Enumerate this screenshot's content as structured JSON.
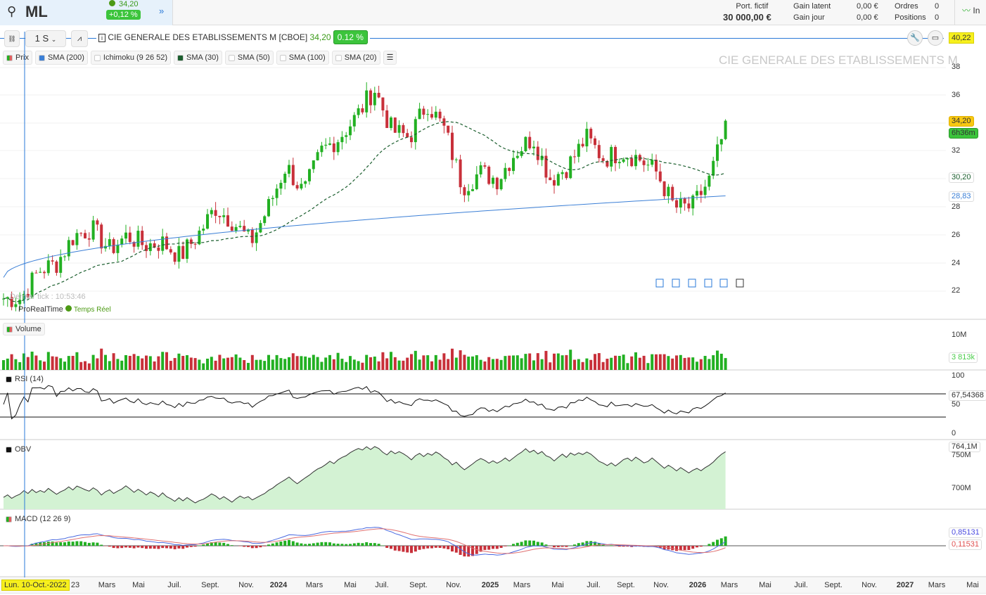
{
  "header": {
    "search_icon": "search-icon",
    "ticker": "ML",
    "price": "34,20",
    "change": "+0,12 %",
    "more_icon": "double-chevron-right-icon",
    "portfolio_label": "Port. fictif",
    "portfolio_value": "30 000,00 €",
    "gain_latent_label": "Gain latent",
    "gain_latent": "0,00 €",
    "gain_jour_label": "Gain jour",
    "gain_jour": "0,00 €",
    "ordres_label": "Ordres",
    "ordres": "0",
    "positions_label": "Positions",
    "positions": "0",
    "side_label": "In"
  },
  "toolbar": {
    "period": "1 S",
    "instrument": "CIE GENERALE DES ETABLISSEMENTS M [CBOE]",
    "price": "34,20",
    "change": "0.12 %",
    "crosshair_price": "40,22"
  },
  "legend": [
    {
      "label": "Prix",
      "color": "#d04040"
    },
    {
      "label": "SMA (200)",
      "color": "#3b7fd6"
    },
    {
      "label": "Ichimoku (9 26 52)",
      "color": ""
    },
    {
      "label": "SMA (30)",
      "color": "#1b5e2e"
    },
    {
      "label": "SMA (50)",
      "color": ""
    },
    {
      "label": "SMA (100)",
      "color": ""
    },
    {
      "label": "SMA (20)",
      "color": ""
    }
  ],
  "watermark": "CIE GENERALE DES ETABLISSEMENTS M",
  "status": {
    "last_tick": "Dernier tick : 10:53:46",
    "provider": "ProRealTime",
    "realtime": "Temps Réel"
  },
  "price_axis": [
    "38",
    "36",
    "32",
    "28",
    "26",
    "24",
    "22"
  ],
  "tags": {
    "last": "34,20",
    "timer": "6h36m",
    "sma30": "30,20",
    "sma200": "28,83",
    "volume": "3 813k",
    "rsi": "67,54368",
    "obv": "764,1M",
    "macd": "0,85131",
    "signal": "0,11531"
  },
  "panels": {
    "volume": "Volume",
    "rsi": "RSI (14)",
    "obv": "OBV",
    "macd": "MACD (12 26 9)"
  },
  "volume_axis": [
    "10M"
  ],
  "rsi_axis": [
    "100",
    "50",
    "0"
  ],
  "obv_axis": [
    "750M",
    "700M"
  ],
  "colors": {
    "up": "#22b022",
    "down": "#c8303a",
    "sma200": "#3b7fd6",
    "sma30": "#1b5e2e",
    "obv_fill": "#d3f2d3"
  },
  "x_axis": {
    "cursor_label": "Lun. 10-Oct.-2022",
    "labels": [
      {
        "t": "23",
        "x": 107,
        "b": false
      },
      {
        "t": "Mars",
        "x": 152,
        "b": false
      },
      {
        "t": "Mai",
        "x": 197,
        "b": false
      },
      {
        "t": "Juil.",
        "x": 248,
        "b": false
      },
      {
        "t": "Sept.",
        "x": 299,
        "b": false
      },
      {
        "t": "Nov.",
        "x": 350,
        "b": false
      },
      {
        "t": "2024",
        "x": 396,
        "b": true
      },
      {
        "t": "Mars",
        "x": 447,
        "b": false
      },
      {
        "t": "Mai",
        "x": 498,
        "b": false
      },
      {
        "t": "Juil.",
        "x": 543,
        "b": false
      },
      {
        "t": "Sept.",
        "x": 595,
        "b": false
      },
      {
        "t": "Nov.",
        "x": 645,
        "b": false
      },
      {
        "t": "2025",
        "x": 697,
        "b": true
      },
      {
        "t": "Mars",
        "x": 742,
        "b": false
      },
      {
        "t": "Mai",
        "x": 793,
        "b": false
      },
      {
        "t": "Juil.",
        "x": 844,
        "b": false
      },
      {
        "t": "Sept.",
        "x": 890,
        "b": false
      },
      {
        "t": "Nov.",
        "x": 940,
        "b": false
      },
      {
        "t": "2026",
        "x": 992,
        "b": true
      },
      {
        "t": "Mars",
        "x": 1037,
        "b": false
      },
      {
        "t": "Mai",
        "x": 1088,
        "b": false
      },
      {
        "t": "Juil.",
        "x": 1139,
        "b": false
      },
      {
        "t": "Sept.",
        "x": 1185,
        "b": false
      },
      {
        "t": "Nov.",
        "x": 1236,
        "b": false
      },
      {
        "t": "2027",
        "x": 1287,
        "b": true
      },
      {
        "t": "Mars",
        "x": 1332,
        "b": false
      },
      {
        "t": "Mai",
        "x": 1383,
        "b": false
      }
    ]
  },
  "chart_data": {
    "type": "candlestick",
    "interval": "weekly",
    "monthly_close": [
      [
        "2022-09",
        21.5
      ],
      [
        "2022-10",
        21.5
      ],
      [
        "2022-11",
        23.5
      ],
      [
        "2022-12",
        24
      ],
      [
        "2023-01",
        26
      ],
      [
        "2023-02",
        26.5
      ],
      [
        "2023-03",
        25
      ],
      [
        "2023-04",
        26
      ],
      [
        "2023-05",
        25.3
      ],
      [
        "2023-06",
        25.5
      ],
      [
        "2023-07",
        24.5
      ],
      [
        "2023-08",
        26
      ],
      [
        "2023-09",
        28
      ],
      [
        "2023-10",
        27
      ],
      [
        "2023-11",
        25.5
      ],
      [
        "2023-12",
        28
      ],
      [
        "2024-01",
        31
      ],
      [
        "2024-02",
        29
      ],
      [
        "2024-03",
        32
      ],
      [
        "2024-04",
        33
      ],
      [
        "2024-05",
        34.5
      ],
      [
        "2024-06",
        36.5
      ],
      [
        "2024-07",
        33.5
      ],
      [
        "2024-08",
        33
      ],
      [
        "2024-09",
        35.5
      ],
      [
        "2024-10",
        33.5
      ],
      [
        "2024-11",
        29.5
      ],
      [
        "2024-12",
        30.5
      ],
      [
        "2025-01",
        30
      ],
      [
        "2025-02",
        32
      ],
      [
        "2025-03",
        33
      ],
      [
        "2025-04",
        30
      ],
      [
        "2025-05",
        31
      ],
      [
        "2025-06",
        33
      ],
      [
        "2025-07",
        31.5
      ],
      [
        "2025-08",
        32
      ],
      [
        "2025-09",
        31.5
      ],
      [
        "2025-10",
        30.5
      ],
      [
        "2025-11",
        28
      ],
      [
        "2025-12",
        28
      ],
      [
        "2026-01",
        30
      ],
      [
        "2026-02",
        34.2
      ]
    ]
  }
}
